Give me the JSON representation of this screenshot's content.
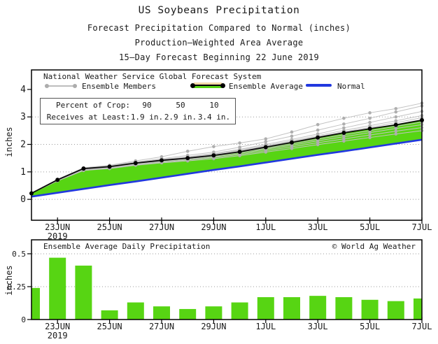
{
  "colors": {
    "surplus_green": "#57d513",
    "normal_blue": "#2138df",
    "member_gray_line": "#c2c2c2",
    "member_gray_dot": "#aeaeae",
    "average_black": "#000000",
    "deficit_tan": "#f2d9a7"
  },
  "titles": {
    "line1": "US Soybeans Precipitation",
    "line2": "Forecast Precipitation Compared to Normal (inches)",
    "line3": "Production–Weighted Area Average",
    "line4": "15–Day Forecast Beginning 22 June 2019"
  },
  "legend": {
    "header": "National Weather Service Global Forecast System",
    "members_label": "Ensemble Members",
    "average_label": "Ensemble Average",
    "normal_label": "Normal"
  },
  "info_box": {
    "row1_label": "Percent of Crop:",
    "row1_values": [
      "90",
      "50",
      "10"
    ],
    "row2_label": "Receives at Least:",
    "row2_values": [
      "1.9 in.",
      "2.9 in.",
      "3.4 in."
    ]
  },
  "top_panel": {
    "ylabel": "inches"
  },
  "bottom_panel": {
    "title": "Ensemble Average Daily Precipitation",
    "copyright": "© World Ag Weather",
    "ylabel": "inches"
  },
  "chart_data": [
    {
      "type": "line",
      "title": "Forecast cumulative precipitation vs normal",
      "x_dates": [
        "22JUN",
        "23JUN",
        "24JUN",
        "25JUN",
        "26JUN",
        "27JUN",
        "28JUN",
        "29JUN",
        "30JUN",
        "1JUL",
        "2JUL",
        "3JUL",
        "4JUL",
        "5JUL",
        "6JUL",
        "7JUL"
      ],
      "x_ticks": [
        {
          "pos": 1,
          "label": "23JUN",
          "sub": "2019"
        },
        {
          "pos": 3,
          "label": "25JUN"
        },
        {
          "pos": 5,
          "label": "27JUN"
        },
        {
          "pos": 7,
          "label": "29JUN"
        },
        {
          "pos": 9,
          "label": "1JUL"
        },
        {
          "pos": 11,
          "label": "3JUL"
        },
        {
          "pos": 13,
          "label": "5JUL"
        },
        {
          "pos": 15,
          "label": "7JUL"
        }
      ],
      "ylabel": "inches",
      "ylim": [
        -0.76,
        4.71
      ],
      "y_ticks": [
        {
          "v": 0,
          "label": "0"
        },
        {
          "v": 1,
          "label": "1"
        },
        {
          "v": 2,
          "label": "2"
        },
        {
          "v": 3,
          "label": "3"
        },
        {
          "v": 4,
          "label": "4"
        }
      ],
      "gridlines": [
        0,
        1,
        2,
        3
      ],
      "series": [
        {
          "name": "Normal",
          "role": "normal",
          "values": [
            0.1,
            0.24,
            0.38,
            0.52,
            0.65,
            0.79,
            0.93,
            1.07,
            1.2,
            1.34,
            1.48,
            1.62,
            1.75,
            1.89,
            2.03,
            2.17
          ]
        },
        {
          "name": "Ensemble Average",
          "role": "average",
          "values": [
            0.22,
            0.71,
            1.12,
            1.19,
            1.32,
            1.42,
            1.5,
            1.6,
            1.73,
            1.9,
            2.07,
            2.25,
            2.42,
            2.57,
            2.71,
            2.88
          ]
        },
        {
          "name": "Member 1",
          "role": "member",
          "values": [
            0.22,
            0.73,
            1.15,
            1.24,
            1.4,
            1.55,
            1.75,
            1.92,
            2.05,
            2.2,
            2.45,
            2.72,
            2.95,
            3.15,
            3.3,
            3.5
          ]
        },
        {
          "name": "Member 2",
          "role": "member",
          "values": [
            0.22,
            0.72,
            1.14,
            1.22,
            1.36,
            1.48,
            1.6,
            1.72,
            1.9,
            2.1,
            2.3,
            2.52,
            2.74,
            2.95,
            3.18,
            3.4
          ]
        },
        {
          "name": "Member 3",
          "role": "member",
          "values": [
            0.22,
            0.7,
            1.1,
            1.18,
            1.33,
            1.45,
            1.55,
            1.67,
            1.82,
            2.0,
            2.18,
            2.38,
            2.6,
            2.8,
            3.0,
            3.2
          ]
        },
        {
          "name": "Member 4",
          "role": "member",
          "values": [
            0.22,
            0.72,
            1.13,
            1.21,
            1.34,
            1.44,
            1.54,
            1.65,
            1.79,
            1.96,
            2.13,
            2.32,
            2.51,
            2.68,
            2.86,
            3.05
          ]
        },
        {
          "name": "Member 5",
          "role": "member",
          "values": [
            0.22,
            0.71,
            1.12,
            1.2,
            1.33,
            1.43,
            1.52,
            1.62,
            1.76,
            1.93,
            2.1,
            2.28,
            2.46,
            2.62,
            2.79,
            2.97
          ]
        },
        {
          "name": "Member 6",
          "role": "member",
          "values": [
            0.22,
            0.7,
            1.11,
            1.18,
            1.31,
            1.41,
            1.5,
            1.6,
            1.74,
            1.9,
            2.06,
            2.24,
            2.41,
            2.57,
            2.73,
            2.9
          ]
        },
        {
          "name": "Member 7",
          "role": "member",
          "values": [
            0.22,
            0.7,
            1.1,
            1.17,
            1.3,
            1.4,
            1.48,
            1.58,
            1.71,
            1.86,
            2.02,
            2.19,
            2.35,
            2.5,
            2.66,
            2.81
          ]
        },
        {
          "name": "Member 8",
          "role": "member",
          "values": [
            0.22,
            0.69,
            1.09,
            1.16,
            1.28,
            1.38,
            1.46,
            1.55,
            1.67,
            1.82,
            1.97,
            2.13,
            2.28,
            2.43,
            2.58,
            2.72
          ]
        },
        {
          "name": "Member 9",
          "role": "member",
          "values": [
            0.22,
            0.68,
            1.07,
            1.14,
            1.26,
            1.35,
            1.43,
            1.52,
            1.63,
            1.77,
            1.91,
            2.06,
            2.2,
            2.34,
            2.48,
            2.61
          ]
        },
        {
          "name": "Member 10",
          "role": "member",
          "values": [
            0.22,
            0.67,
            1.05,
            1.12,
            1.24,
            1.33,
            1.4,
            1.48,
            1.59,
            1.72,
            1.85,
            1.99,
            2.12,
            2.25,
            2.38,
            2.5
          ]
        }
      ]
    },
    {
      "type": "bar",
      "title": "Ensemble Average Daily Precipitation",
      "categories": [
        "22JUN",
        "23JUN",
        "24JUN",
        "25JUN",
        "26JUN",
        "27JUN",
        "28JUN",
        "29JUN",
        "30JUN",
        "1JUL",
        "2JUL",
        "3JUL",
        "4JUL",
        "5JUL",
        "6JUL",
        "7JUL"
      ],
      "values": [
        0.24,
        0.47,
        0.41,
        0.07,
        0.13,
        0.1,
        0.08,
        0.1,
        0.13,
        0.17,
        0.17,
        0.18,
        0.17,
        0.15,
        0.14,
        0.16
      ],
      "x_ticks": [
        {
          "pos": 1,
          "label": "23JUN",
          "sub": "2019"
        },
        {
          "pos": 3,
          "label": "25JUN"
        },
        {
          "pos": 5,
          "label": "27JUN"
        },
        {
          "pos": 7,
          "label": "29JUN"
        },
        {
          "pos": 9,
          "label": "1JUL"
        },
        {
          "pos": 11,
          "label": "3JUL"
        },
        {
          "pos": 13,
          "label": "5JUL"
        },
        {
          "pos": 15,
          "label": "7JUL"
        }
      ],
      "ylabel": "inches",
      "ylim": [
        0,
        0.606
      ],
      "y_ticks": [
        {
          "v": 0,
          "label": "0"
        },
        {
          "v": 0.25,
          "label": "0.25"
        },
        {
          "v": 0.5,
          "label": "0.5"
        }
      ],
      "gridlines": [
        0.25,
        0.5
      ]
    }
  ]
}
